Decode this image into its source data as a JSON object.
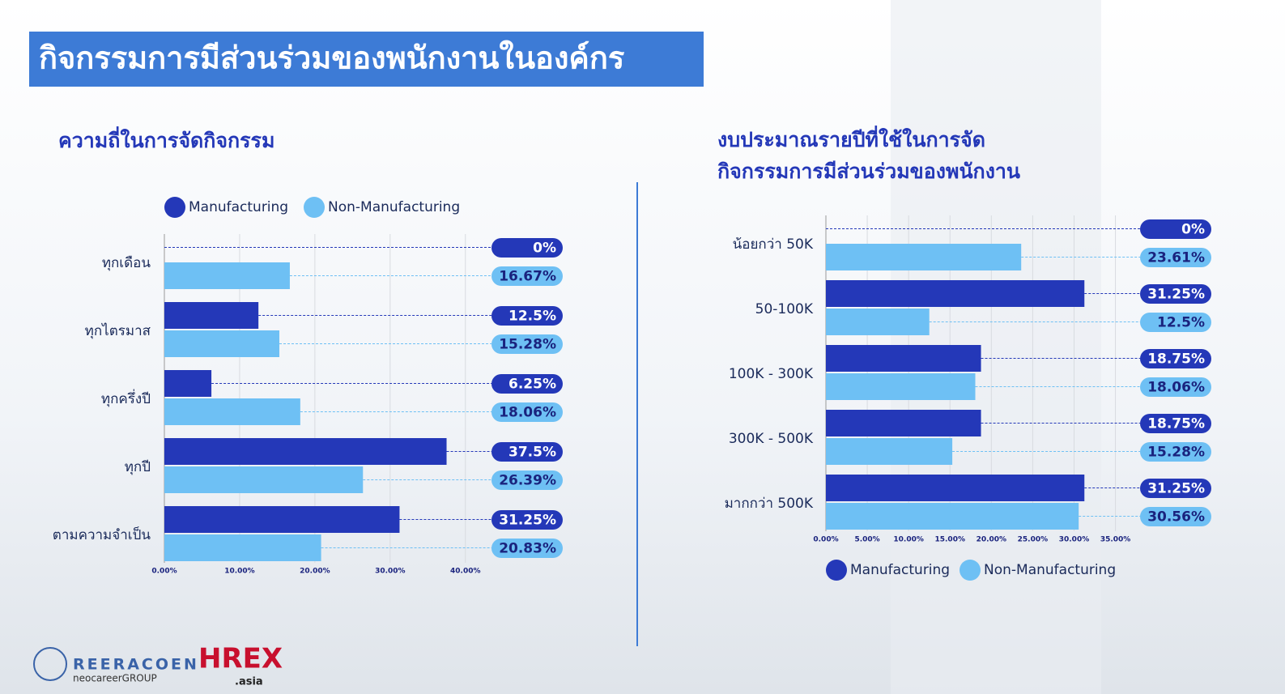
{
  "header": {
    "title": "กิจกรรมการมีส่วนร่วมของพนักงานในองค์กร"
  },
  "chart_data": [
    {
      "type": "bar",
      "orientation": "horizontal",
      "title": [
        "ความถี่ในการจัดกิจกรรม"
      ],
      "categories": [
        "ทุกเดือน",
        "ทุกไตรมาส",
        "ทุกครึ่งปี",
        "ทุกปี",
        "ตามความจำเป็น"
      ],
      "series": [
        {
          "name": "Manufacturing",
          "color": "#2438b8",
          "values": [
            0,
            12.5,
            6.25,
            37.5,
            31.25
          ],
          "value_labels": [
            "0%",
            "12.5%",
            "6.25%",
            "37.5%",
            "31.25%"
          ]
        },
        {
          "name": "Non-Manufacturing",
          "color": "#6ec0f4",
          "values": [
            16.67,
            15.28,
            18.06,
            26.39,
            20.83
          ],
          "value_labels": [
            "16.67%",
            "15.28%",
            "18.06%",
            "26.39%",
            "20.83%"
          ]
        }
      ],
      "xlim": [
        0,
        42.5
      ],
      "xticks": [
        {
          "value": 0,
          "label": "0.00%"
        },
        {
          "value": 10,
          "label": "10.00%"
        },
        {
          "value": 20,
          "label": "20.00%"
        },
        {
          "value": 30,
          "label": "30.00%"
        },
        {
          "value": 40,
          "label": "40.00%"
        }
      ],
      "grid": true,
      "legend": "top"
    },
    {
      "type": "bar",
      "orientation": "horizontal",
      "title": [
        "งบประมาณรายปีที่ใช้ในการจัด",
        "กิจกรรมการมีส่วนร่วมของพนักงาน"
      ],
      "categories": [
        "น้อยกว่า 50K",
        "50-100K",
        "100K - 300K",
        "300K - 500K",
        "มากกว่า 500K"
      ],
      "series": [
        {
          "name": "Manufacturing",
          "color": "#2438b8",
          "values": [
            0,
            31.25,
            18.75,
            18.75,
            31.25
          ],
          "value_labels": [
            "0%",
            "31.25%",
            "18.75%",
            "18.75%",
            "31.25%"
          ]
        },
        {
          "name": "Non-Manufacturing",
          "color": "#6ec0f4",
          "values": [
            23.61,
            12.5,
            18.06,
            15.28,
            30.56
          ],
          "value_labels": [
            "23.61%",
            "12.5%",
            "18.06%",
            "15.28%",
            "30.56%"
          ]
        }
      ],
      "xlim": [
        0,
        37
      ],
      "xticks": [
        {
          "value": 0,
          "label": "0.00%"
        },
        {
          "value": 5,
          "label": "5.00%"
        },
        {
          "value": 10,
          "label": "10.00%"
        },
        {
          "value": 15,
          "label": "15.00%"
        },
        {
          "value": 20,
          "label": "20.00%"
        },
        {
          "value": 25,
          "label": "25.00%"
        },
        {
          "value": 30,
          "label": "30.00%"
        },
        {
          "value": 35,
          "label": "35.00%"
        }
      ],
      "grid": true,
      "legend": "bottom"
    }
  ],
  "logos": {
    "reeracoen": "REERACOEN",
    "group": "neocareerGROUP",
    "hrex": "HREX",
    "asia": ".asia"
  }
}
